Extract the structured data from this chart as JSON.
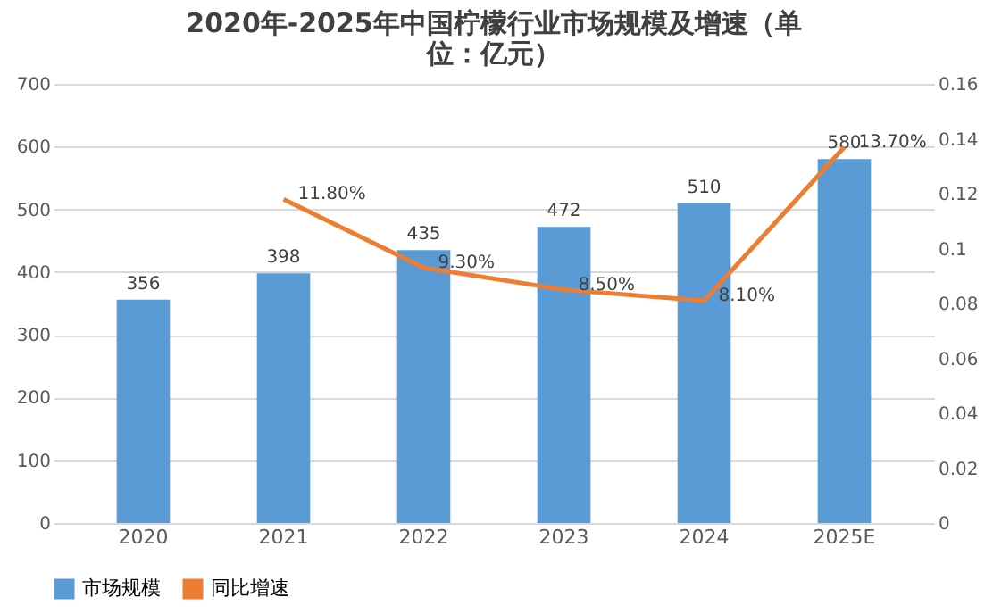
{
  "chart_data": {
    "type": "bar",
    "title": "2020年-2025年中国柠檬行业市场规模及增速（单位：亿元）",
    "categories": [
      "2020",
      "2021",
      "2022",
      "2023",
      "2024",
      "2025E"
    ],
    "series": [
      {
        "name": "市场规模",
        "color": "#5b9bd5",
        "values": [
          356,
          398,
          435,
          472,
          510,
          580
        ]
      },
      {
        "name": "同比增速",
        "type": "line",
        "axis": "y2",
        "color": "#ed7d31",
        "values": [
          null,
          0.118,
          0.093,
          0.085,
          0.081,
          0.137
        ],
        "value_labels": [
          null,
          "11.80%",
          "9.30%",
          "8.50%",
          "8.10%",
          "13.70%"
        ]
      }
    ],
    "data_labels": true,
    "ylim": [
      0,
      700
    ],
    "yticks": [
      0,
      100,
      200,
      300,
      400,
      500,
      600,
      700
    ],
    "y2lim": [
      0,
      0.16
    ],
    "y2ticks": [
      0,
      0.02,
      0.04,
      0.06,
      0.08,
      0.1,
      0.12,
      0.14,
      0.16
    ],
    "grid": "y",
    "legend": "bottom"
  }
}
